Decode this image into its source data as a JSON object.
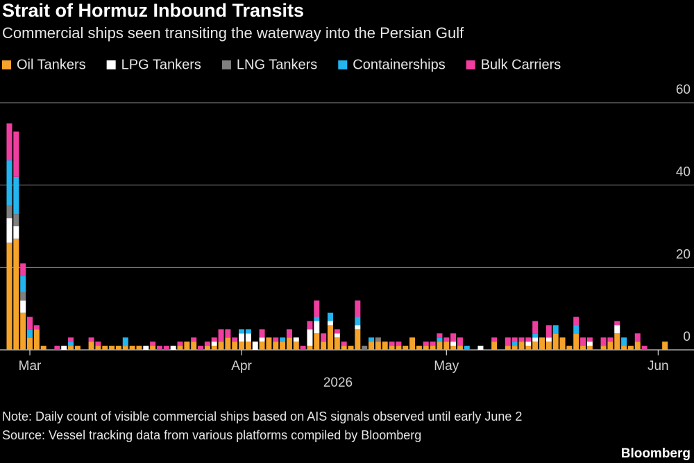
{
  "chart_data": {
    "type": "stacked_bar",
    "title": "Strait of Hormuz Inbound Transits",
    "subtitle": "Commercial ships seen transiting the waterway into the Persian Gulf",
    "xlabel": "2026",
    "note": "Note: Daily count of visible commercial ships based on AIS signals observed until early June 2",
    "source": "Source: Vessel tracking data from various platforms compiled by Bloomberg",
    "brand": "Bloomberg",
    "categories": [
      null,
      null,
      null,
      "Mar",
      null,
      null,
      null,
      null,
      null,
      null,
      null,
      null,
      null,
      null,
      null,
      null,
      null,
      null,
      null,
      null,
      null,
      null,
      null,
      null,
      null,
      null,
      null,
      null,
      null,
      null,
      null,
      null,
      null,
      null,
      "Apr",
      null,
      null,
      null,
      null,
      null,
      null,
      null,
      null,
      null,
      null,
      null,
      null,
      null,
      null,
      null,
      null,
      null,
      null,
      null,
      null,
      null,
      null,
      null,
      null,
      null,
      null,
      null,
      null,
      null,
      "May",
      null,
      null,
      null,
      null,
      null,
      null,
      null,
      null,
      null,
      null,
      null,
      null,
      null,
      null,
      null,
      null,
      null,
      null,
      null,
      null,
      null,
      null,
      null,
      null,
      null,
      null,
      null,
      null,
      null,
      null,
      "Jun",
      null
    ],
    "series": [
      {
        "name": "Oil Tankers",
        "color": "#f5a32a",
        "values": [
          26,
          27,
          9,
          3,
          5,
          1,
          0,
          0,
          0,
          1,
          1,
          0,
          2,
          1,
          1,
          1,
          1,
          1,
          1,
          1,
          0,
          1,
          0,
          0,
          0,
          1,
          2,
          2,
          0,
          1,
          1,
          2,
          3,
          2,
          2,
          2,
          0,
          2,
          3,
          2,
          2,
          3,
          2,
          0,
          1,
          4,
          2,
          6,
          3,
          1,
          1,
          5,
          0,
          2,
          2,
          2,
          1,
          1,
          1,
          3,
          1,
          1,
          1,
          2,
          2,
          1,
          1,
          0,
          0,
          0,
          0,
          2,
          0,
          1,
          1,
          2,
          1,
          2,
          3,
          2,
          4,
          3,
          1,
          4,
          1,
          1,
          0,
          1,
          2,
          4,
          1,
          1,
          2,
          0,
          0,
          0,
          2
        ]
      },
      {
        "name": "LPG Tankers",
        "color": "#ffffff",
        "values": [
          6,
          3,
          3,
          0,
          0,
          0,
          0,
          0,
          1,
          0,
          0,
          0,
          0,
          0,
          0,
          0,
          0,
          0,
          0,
          0,
          1,
          0,
          0,
          0,
          1,
          0,
          0,
          0,
          0,
          0,
          1,
          0,
          0,
          0,
          2,
          2,
          2,
          1,
          0,
          0,
          0,
          0,
          1,
          0,
          4,
          3,
          0,
          1,
          1,
          0,
          0,
          1,
          0,
          0,
          0,
          0,
          0,
          0,
          0,
          0,
          0,
          0,
          0,
          0,
          0,
          1,
          0,
          0,
          0,
          1,
          0,
          0,
          0,
          0,
          0,
          0,
          1,
          1,
          0,
          1,
          0,
          0,
          0,
          0,
          0,
          1,
          0,
          0,
          0,
          2,
          0,
          0,
          0,
          0,
          0,
          0,
          0
        ]
      },
      {
        "name": "LNG Tankers",
        "color": "#808080",
        "values": [
          3,
          3,
          2,
          0,
          0,
          0,
          0,
          0,
          0,
          0,
          0,
          0,
          0,
          0,
          0,
          0,
          0,
          0,
          0,
          0,
          0,
          0,
          0,
          0,
          0,
          0,
          0,
          0,
          0,
          0,
          0,
          0,
          0,
          0,
          0,
          0,
          0,
          0,
          0,
          0,
          0,
          0,
          0,
          0,
          0,
          0,
          0,
          0,
          0,
          0,
          0,
          0,
          1,
          0,
          1,
          0,
          0,
          0,
          0,
          0,
          0,
          0,
          0,
          0,
          0,
          0,
          0,
          0,
          0,
          0,
          0,
          0,
          0,
          0,
          0,
          0,
          0,
          0,
          0,
          0,
          0,
          0,
          0,
          0,
          0,
          0,
          0,
          0,
          0,
          0,
          0,
          0,
          0,
          0,
          0,
          0,
          0
        ]
      },
      {
        "name": "Containerships",
        "color": "#22b5ef",
        "values": [
          11,
          9,
          4,
          2,
          0,
          0,
          0,
          0,
          0,
          1,
          0,
          0,
          0,
          0,
          0,
          0,
          0,
          2,
          0,
          0,
          0,
          0,
          0,
          0,
          0,
          0,
          0,
          0,
          0,
          0,
          0,
          0,
          0,
          0,
          1,
          1,
          0,
          0,
          0,
          0,
          1,
          0,
          0,
          0,
          0,
          1,
          0,
          2,
          0,
          0,
          0,
          2,
          0,
          1,
          0,
          0,
          0,
          0,
          0,
          0,
          0,
          0,
          0,
          1,
          0,
          0,
          0,
          1,
          0,
          0,
          0,
          0,
          0,
          0,
          1,
          0,
          0,
          1,
          0,
          0,
          2,
          0,
          0,
          2,
          0,
          0,
          0,
          0,
          0,
          0,
          2,
          0,
          0,
          0,
          0,
          0,
          0
        ]
      },
      {
        "name": "Bulk Carriers",
        "color": "#f03ea0",
        "values": [
          9,
          11,
          3,
          3,
          1,
          0,
          0,
          1,
          0,
          1,
          0,
          0,
          1,
          1,
          0,
          0,
          0,
          0,
          0,
          0,
          0,
          1,
          1,
          1,
          0,
          1,
          0,
          1,
          1,
          1,
          1,
          3,
          2,
          1,
          0,
          0,
          0,
          2,
          0,
          1,
          0,
          2,
          0,
          1,
          2,
          4,
          2,
          0,
          1,
          1,
          0,
          4,
          0,
          0,
          0,
          0,
          1,
          1,
          0,
          0,
          0,
          1,
          1,
          1,
          1,
          2,
          2,
          0,
          0,
          0,
          0,
          1,
          0,
          2,
          1,
          1,
          1,
          3,
          0,
          3,
          0,
          0,
          0,
          2,
          2,
          1,
          0,
          2,
          1,
          1,
          0,
          0,
          2,
          1,
          0,
          0,
          0
        ]
      }
    ],
    "ylim": [
      0,
      60
    ],
    "yticks": [
      0,
      20,
      40,
      60
    ],
    "grid": true,
    "legend": "top-left"
  }
}
